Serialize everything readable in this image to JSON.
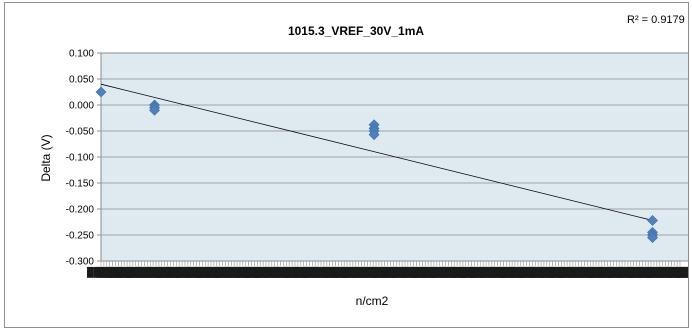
{
  "chart_data": {
    "type": "scatter",
    "title": "1015.3_VREF_30V_1mA",
    "xlabel": "n/cm2",
    "ylabel": "Delta (V)",
    "ylim": [
      -0.3,
      0.1
    ],
    "yticks": [
      0.1,
      0.05,
      0.0,
      -0.05,
      -0.1,
      -0.15,
      -0.2,
      -0.25,
      -0.3
    ],
    "ytick_labels": [
      "0.100",
      "0.050",
      "0.000",
      "-0.050",
      "-0.100",
      "-0.150",
      "-0.200",
      "-0.250",
      "-0.300"
    ],
    "xlim": [
      0,
      11000000000000.0
    ],
    "x_tick_labels_note": "overlapping illegible tick labels",
    "grid": true,
    "series": [
      {
        "color": "#4f81bd",
        "x": [
          0,
          1000000000000.0,
          1000000000000.0,
          1000000000000.0,
          5100000000000.0,
          5100000000000.0,
          5100000000000.0,
          5100000000000.0,
          10300000000000.0,
          10300000000000.0,
          10300000000000.0,
          10300000000000.0
        ],
        "y": [
          0.025,
          0.0,
          -0.005,
          -0.01,
          -0.038,
          -0.045,
          -0.05,
          -0.057,
          -0.222,
          -0.245,
          -0.25,
          -0.255
        ]
      }
    ],
    "trendline": {
      "type": "linear",
      "color": "#000000",
      "x": [
        0,
        10300000000000.0
      ],
      "y": [
        0.04,
        -0.222
      ],
      "r2_label": "R² = 0.9179"
    }
  }
}
